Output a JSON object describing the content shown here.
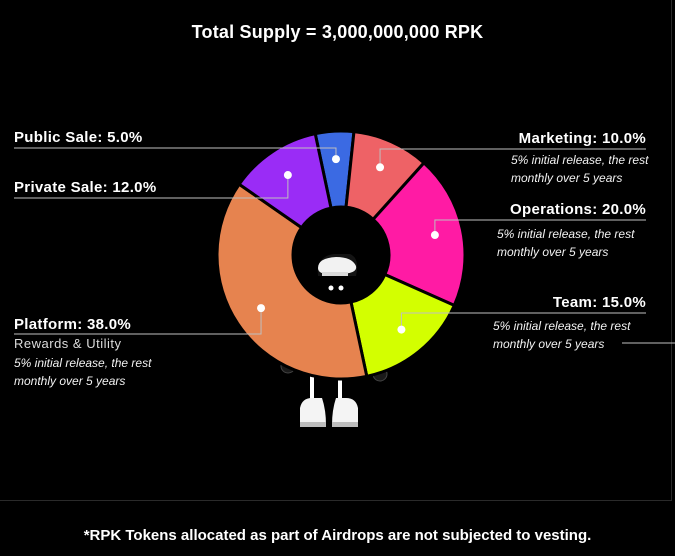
{
  "title": "Total Supply = 3,000,000,000 RPK",
  "footnote": "*RPK Tokens allocated as part of Airdrops are not subjected to vesting.",
  "chart_data": {
    "type": "pie",
    "title": "Total Supply = 3,000,000,000 RPK",
    "slices": [
      {
        "label": "Public Sale",
        "value": 5.0,
        "display": "Public Sale: 5.0%",
        "color": "#3b6ae3"
      },
      {
        "label": "Marketing",
        "value": 10.0,
        "display": "Marketing: 10.0%",
        "color": "#ee6266",
        "note": [
          "5% initial release, the rest",
          "monthly over 5 years"
        ]
      },
      {
        "label": "Operations",
        "value": 20.0,
        "display": "Operations: 20.0%",
        "color": "#ff1ba4",
        "note": [
          "5% initial release, the rest",
          "monthly over 5 years"
        ]
      },
      {
        "label": "Team",
        "value": 15.0,
        "display": "Team: 15.0%",
        "color": "#d3ff00",
        "note": [
          "5% initial release, the rest",
          "monthly over 5 years"
        ]
      },
      {
        "label": "Platform",
        "value": 38.0,
        "display": "Platform: 38.0%",
        "color": "#e6834f",
        "subtitle": "Rewards & Utility",
        "note": [
          "5% initial release, the rest",
          "monthly over 5 years"
        ]
      },
      {
        "label": "Private Sale",
        "value": 12.0,
        "display": "Private Sale: 12.0%",
        "color": "#9a2cf6"
      }
    ]
  },
  "labels": {
    "public": "Public Sale: 5.0%",
    "private": "Private Sale: 12.0%",
    "platform": "Platform: 38.0%",
    "platform_sub": "Rewards & Utility",
    "platform_note1": "5% initial release, the rest",
    "platform_note2": "monthly over 5 years",
    "marketing": "Marketing: 10.0%",
    "marketing_note1": "5% initial release, the rest",
    "marketing_note2": "monthly over 5 years",
    "operations": "Operations: 20.0%",
    "operations_note1": "5% initial release, the rest",
    "operations_note2": "monthly over 5 years",
    "team": "Team: 15.0%",
    "team_note1": "5% initial release, the rest",
    "team_note2": "monthly over 5 years"
  },
  "colors": {
    "background": "#000000",
    "text": "#ffffff",
    "leader": "#bfbfbf"
  },
  "icons": [
    "mascot-character"
  ]
}
